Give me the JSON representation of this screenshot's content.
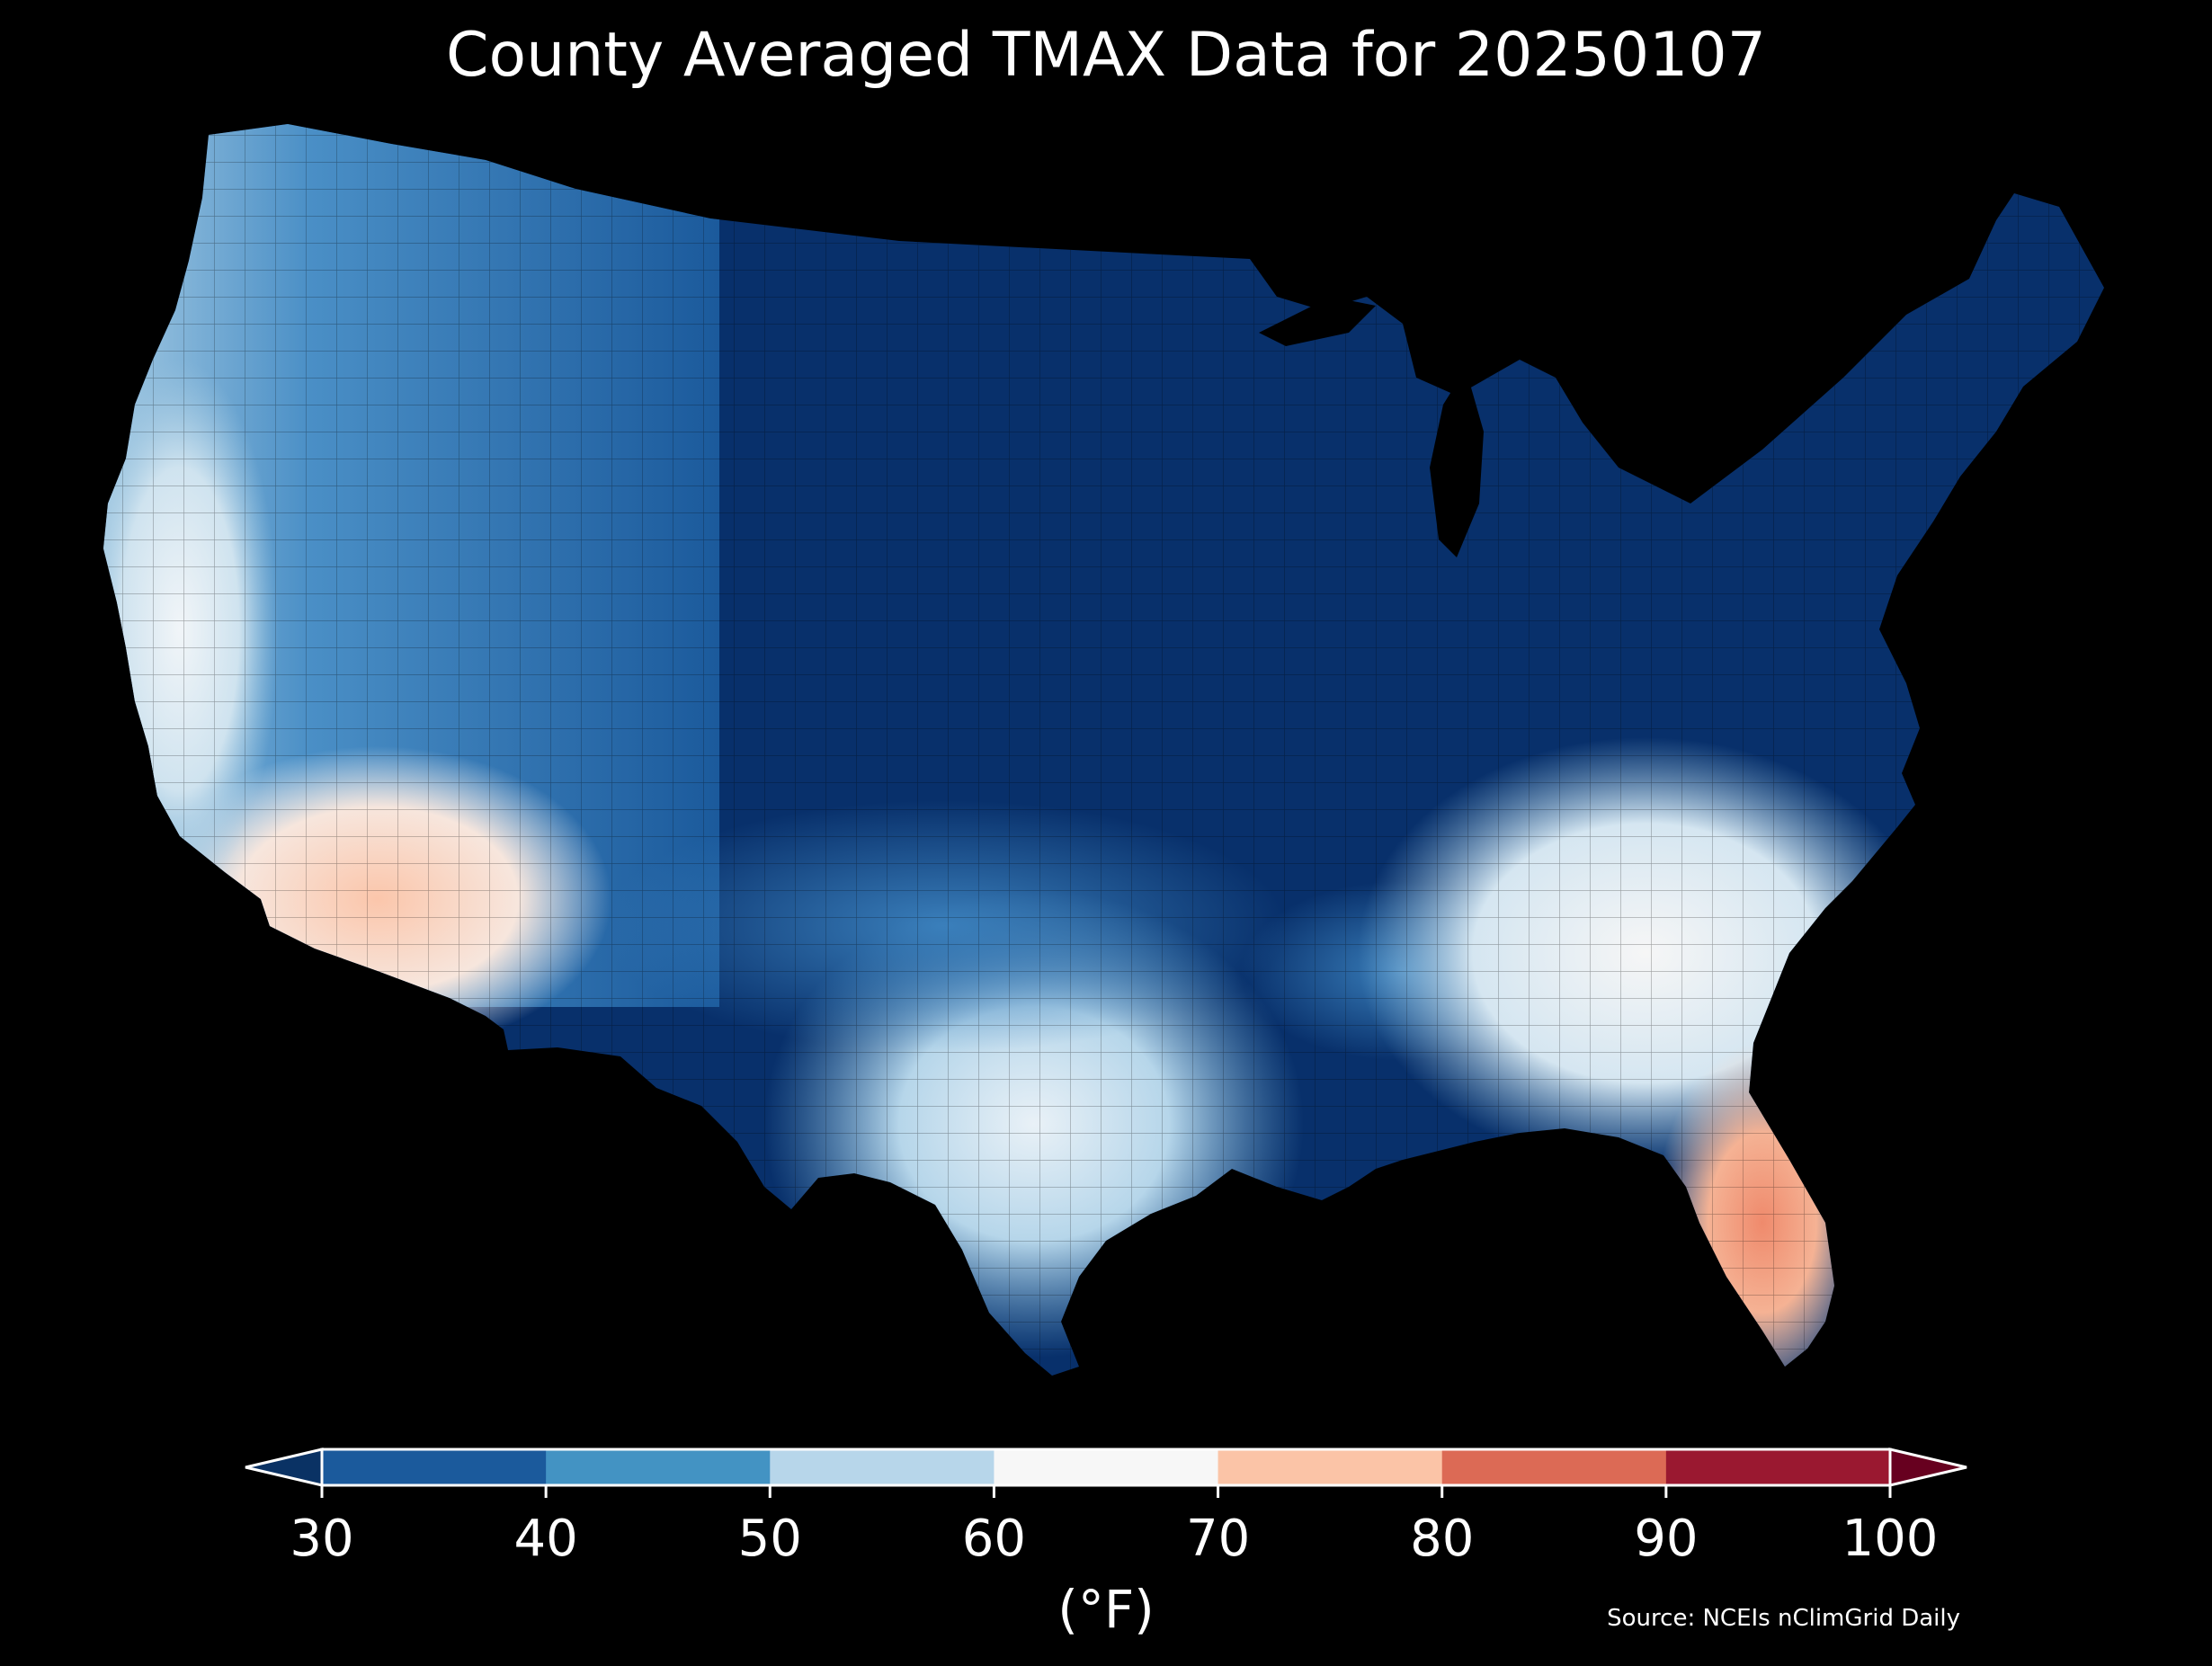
{
  "title": "County Averaged TMAX Data for 20250107",
  "colorbar": {
    "unit_label": "(°F)",
    "ticks": [
      "30",
      "40",
      "50",
      "60",
      "70",
      "80",
      "90",
      "100"
    ],
    "bins": [
      {
        "from": 30,
        "to": 40,
        "color": "#1b5a9c"
      },
      {
        "from": 40,
        "to": 50,
        "color": "#4393c3"
      },
      {
        "from": 50,
        "to": 60,
        "color": "#b7d6ea"
      },
      {
        "from": 60,
        "to": 70,
        "color": "#f7f7f7"
      },
      {
        "from": 70,
        "to": 80,
        "color": "#fbc4a7"
      },
      {
        "from": 80,
        "to": 90,
        "color": "#dc6a55"
      },
      {
        "from": 90,
        "to": 100,
        "color": "#9a1830"
      }
    ],
    "under_color": "#0a3264",
    "over_color": "#67001f"
  },
  "source": "Source: NCEIs nClimGrid Daily",
  "map": {
    "background": "#000000",
    "region": "contiguous-united-states",
    "variable": "TMAX",
    "units": "°F",
    "coldest_color": "#08306b",
    "warmest_color": "#ef8a6c"
  }
}
